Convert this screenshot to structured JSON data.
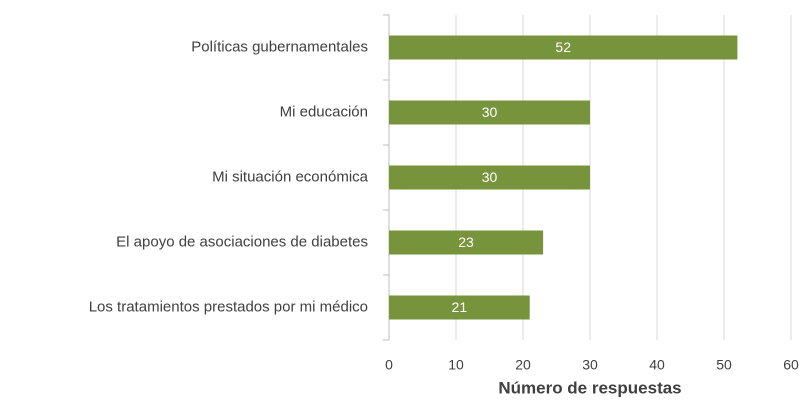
{
  "chart_data": {
    "type": "bar",
    "orientation": "horizontal",
    "categories": [
      "Políticas gubernamentales",
      "Mi educación",
      "Mi situación económica",
      "El apoyo de asociaciones de diabetes",
      "Los tratamientos prestados por mi médico"
    ],
    "values": [
      52,
      30,
      30,
      23,
      21
    ],
    "color": "#77933c",
    "xlabel": "Número de respuestas",
    "xlim": [
      0,
      60
    ],
    "xticks": [
      0,
      10,
      20,
      30,
      40,
      50,
      60
    ],
    "grid": true
  }
}
